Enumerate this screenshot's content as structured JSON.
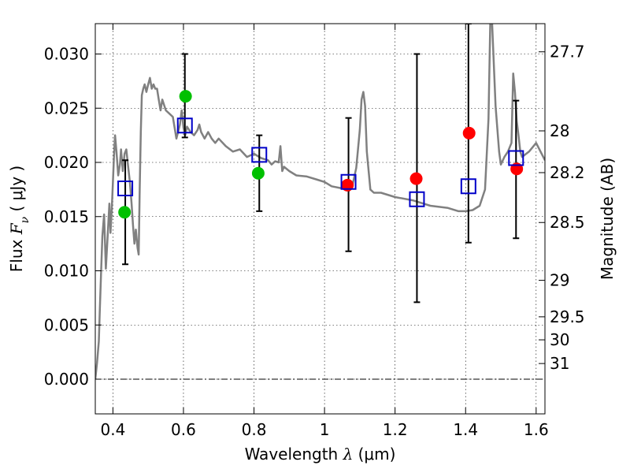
{
  "chart_data": {
    "type": "scatter",
    "xlabel": {
      "prefix": "Wavelength  ",
      "symbol": "λ",
      "unit": " (μm)"
    },
    "ylabel": {
      "prefix": "Flux  ",
      "symbol": "F",
      "sub": "ν",
      "unit": "  ( μJy )"
    },
    "y2label": "Magnitude (AB)",
    "xlim": [
      0.35,
      1.625
    ],
    "ylim": [
      -0.0032,
      0.0328
    ],
    "x_ticks": [
      {
        "value": 0.4,
        "label": "0.4"
      },
      {
        "value": 0.6,
        "label": "0.6"
      },
      {
        "value": 0.8,
        "label": "0.8"
      },
      {
        "value": 1.0,
        "label": "1"
      },
      {
        "value": 1.2,
        "label": "1.2"
      },
      {
        "value": 1.4,
        "label": "1.4"
      },
      {
        "value": 1.6,
        "label": "1.6"
      }
    ],
    "y_ticks": [
      {
        "value": 0.0,
        "label": "0.000"
      },
      {
        "value": 0.005,
        "label": "0.005"
      },
      {
        "value": 0.01,
        "label": "0.010"
      },
      {
        "value": 0.015,
        "label": "0.015"
      },
      {
        "value": 0.02,
        "label": "0.020"
      },
      {
        "value": 0.025,
        "label": "0.025"
      },
      {
        "value": 0.03,
        "label": "0.030"
      }
    ],
    "y2_ticks": [
      {
        "mag": 27.7,
        "label": "27.7"
      },
      {
        "mag": 28.0,
        "label": "28"
      },
      {
        "mag": 28.2,
        "label": "28.2"
      },
      {
        "mag": 28.5,
        "label": "28.5"
      },
      {
        "mag": 29.0,
        "label": "29"
      },
      {
        "mag": 29.5,
        "label": "29.5"
      },
      {
        "mag": 30.0,
        "label": "30"
      },
      {
        "mag": 31.0,
        "label": "31"
      }
    ],
    "grid": true,
    "colors": {
      "model": "#808080",
      "green": "#00c000",
      "red": "#ff0000",
      "box": "#0000c8",
      "errorbar": "#000000"
    },
    "model_spectrum": {
      "x": [
        0.35,
        0.355,
        0.36,
        0.363,
        0.366,
        0.37,
        0.375,
        0.38,
        0.385,
        0.39,
        0.393,
        0.397,
        0.4,
        0.403,
        0.406,
        0.41,
        0.415,
        0.42,
        0.423,
        0.428,
        0.433,
        0.438,
        0.443,
        0.448,
        0.453,
        0.457,
        0.461,
        0.465,
        0.47,
        0.473,
        0.476,
        0.479,
        0.482,
        0.486,
        0.49,
        0.495,
        0.5,
        0.505,
        0.51,
        0.515,
        0.52,
        0.525,
        0.53,
        0.535,
        0.54,
        0.55,
        0.56,
        0.57,
        0.58,
        0.59,
        0.595,
        0.6,
        0.605,
        0.61,
        0.62,
        0.63,
        0.64,
        0.645,
        0.65,
        0.66,
        0.67,
        0.68,
        0.69,
        0.7,
        0.72,
        0.74,
        0.76,
        0.78,
        0.8,
        0.82,
        0.84,
        0.85,
        0.86,
        0.87,
        0.875,
        0.88,
        0.885,
        0.9,
        0.92,
        0.95,
        0.98,
        1.0,
        1.02,
        1.05,
        1.07,
        1.08,
        1.09,
        1.1,
        1.105,
        1.11,
        1.115,
        1.12,
        1.13,
        1.14,
        1.16,
        1.2,
        1.25,
        1.3,
        1.35,
        1.38,
        1.4,
        1.42,
        1.44,
        1.455,
        1.465,
        1.47,
        1.475,
        1.485,
        1.495,
        1.5,
        1.51,
        1.52,
        1.53,
        1.535,
        1.54,
        1.545,
        1.55,
        1.555,
        1.56,
        1.58,
        1.6,
        1.625
      ],
      "y": [
        0.0,
        0.0015,
        0.0035,
        0.0065,
        0.0095,
        0.0132,
        0.0152,
        0.0102,
        0.0132,
        0.0162,
        0.0135,
        0.0158,
        0.0182,
        0.0205,
        0.0225,
        0.021,
        0.0188,
        0.0198,
        0.0212,
        0.0192,
        0.0208,
        0.0212,
        0.0197,
        0.0182,
        0.0162,
        0.0142,
        0.0125,
        0.0138,
        0.0121,
        0.0115,
        0.0175,
        0.0228,
        0.0262,
        0.0268,
        0.0272,
        0.0265,
        0.0272,
        0.0278,
        0.0268,
        0.0272,
        0.0268,
        0.0268,
        0.0258,
        0.0248,
        0.0258,
        0.0248,
        0.0245,
        0.0242,
        0.0222,
        0.0235,
        0.0248,
        0.0232,
        0.0225,
        0.0233,
        0.0228,
        0.0225,
        0.023,
        0.0235,
        0.0228,
        0.0222,
        0.0228,
        0.0222,
        0.0218,
        0.0222,
        0.0215,
        0.021,
        0.0212,
        0.0205,
        0.0208,
        0.0204,
        0.0202,
        0.0198,
        0.0201,
        0.02,
        0.0215,
        0.0192,
        0.0196,
        0.0192,
        0.0188,
        0.0187,
        0.0184,
        0.0182,
        0.0178,
        0.0176,
        0.0174,
        0.018,
        0.0195,
        0.023,
        0.0258,
        0.0265,
        0.0252,
        0.021,
        0.0175,
        0.0172,
        0.0172,
        0.0168,
        0.0165,
        0.016,
        0.0158,
        0.0155,
        0.0155,
        0.0156,
        0.016,
        0.0175,
        0.024,
        0.033,
        0.033,
        0.0252,
        0.021,
        0.0198,
        0.0205,
        0.021,
        0.0218,
        0.0282,
        0.0265,
        0.0238,
        0.0225,
        0.021,
        0.0205,
        0.021,
        0.0218,
        0.0202
      ]
    },
    "green_points": [
      {
        "x": 0.433,
        "y": 0.0154
      },
      {
        "x": 0.606,
        "y": 0.0261
      },
      {
        "x": 0.812,
        "y": 0.019
      }
    ],
    "red_points": [
      {
        "x": 1.065,
        "y": 0.0179
      },
      {
        "x": 1.26,
        "y": 0.0185
      },
      {
        "x": 1.41,
        "y": 0.0227
      },
      {
        "x": 1.545,
        "y": 0.0194
      }
    ],
    "square_points": [
      {
        "x": 0.435,
        "y": 0.0176
      },
      {
        "x": 0.604,
        "y": 0.0234
      },
      {
        "x": 0.815,
        "y": 0.0207
      },
      {
        "x": 1.068,
        "y": 0.0182
      },
      {
        "x": 1.262,
        "y": 0.0166
      },
      {
        "x": 1.408,
        "y": 0.0178
      },
      {
        "x": 1.543,
        "y": 0.0204
      }
    ],
    "error_bars": [
      {
        "x": 0.435,
        "ylow": 0.0106,
        "yhigh": 0.0202
      },
      {
        "x": 0.604,
        "ylow": 0.0223,
        "yhigh": 0.03
      },
      {
        "x": 0.815,
        "ylow": 0.0155,
        "yhigh": 0.0225
      },
      {
        "x": 1.068,
        "ylow": 0.0118,
        "yhigh": 0.0241
      },
      {
        "x": 1.262,
        "ylow": 0.0071,
        "yhigh": 0.03
      },
      {
        "x": 1.408,
        "ylow": 0.0126,
        "yhigh": 0.0328
      },
      {
        "x": 1.543,
        "ylow": 0.013,
        "yhigh": 0.0257
      }
    ]
  }
}
